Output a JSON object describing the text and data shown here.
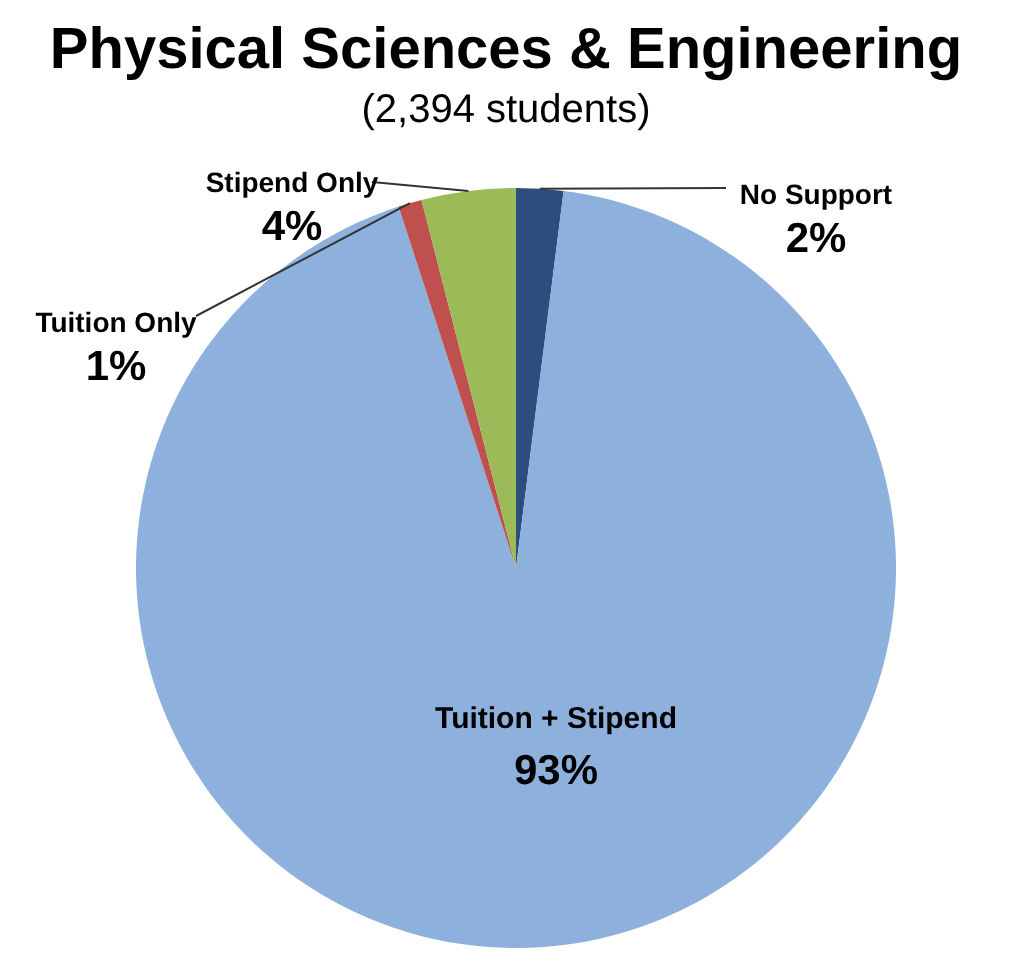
{
  "chart_data": {
    "type": "pie",
    "title": "Physical Sciences & Engineering",
    "subtitle": "(2,394 students)",
    "categories": [
      "No Support",
      "Tuition + Stipend",
      "Tuition Only",
      "Stipend Only"
    ],
    "values": [
      2,
      93,
      1,
      4
    ],
    "value_labels": [
      "2%",
      "93%",
      "1%",
      "4%"
    ],
    "colors": [
      "#2c4d7d",
      "#8db0dc",
      "#c0504d",
      "#9bbb59"
    ],
    "legend": false
  }
}
